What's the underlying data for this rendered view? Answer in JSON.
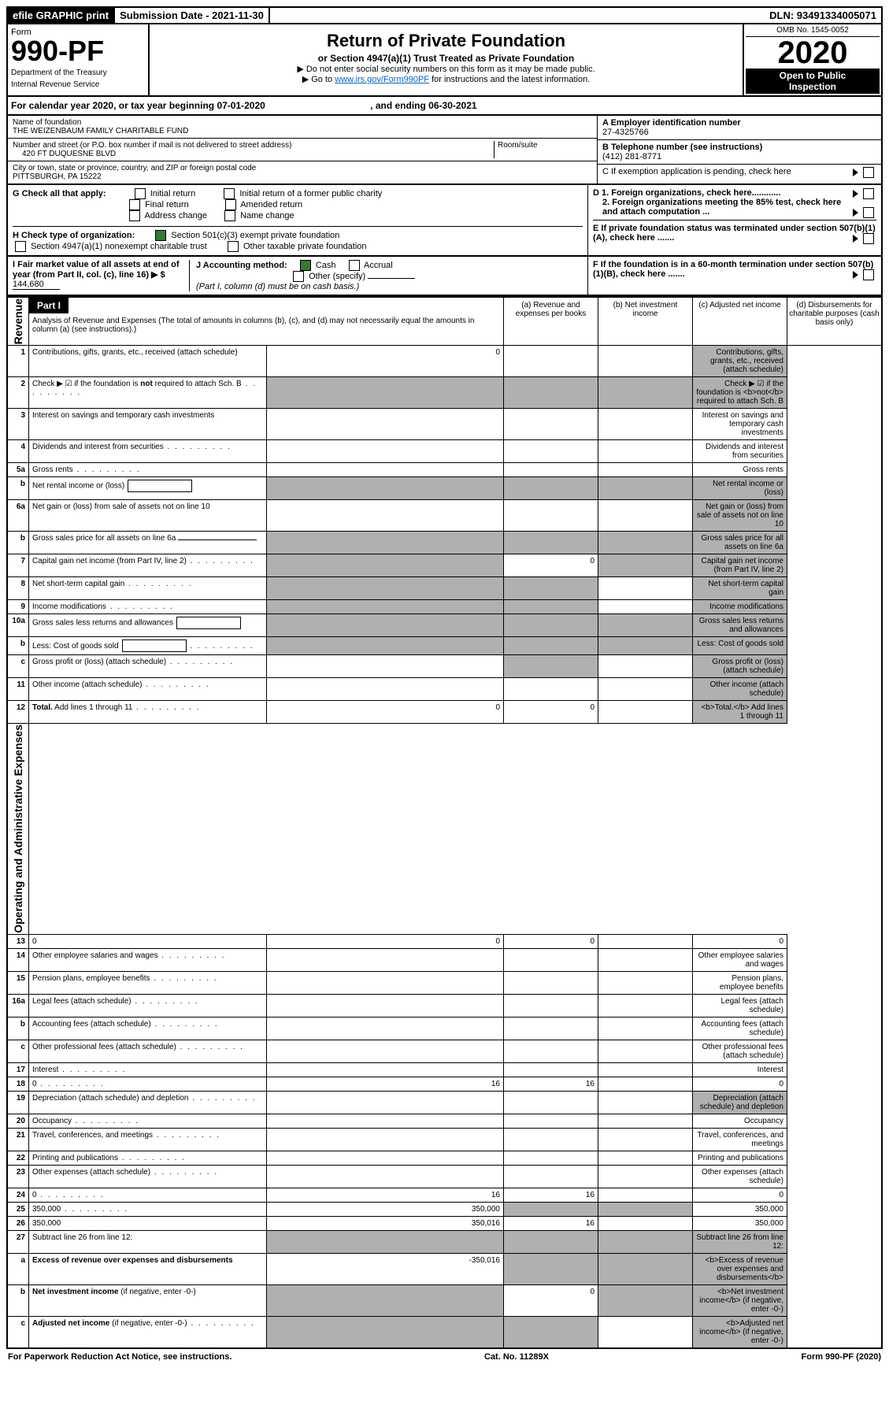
{
  "top": {
    "efile": "efile GRAPHIC print",
    "sub_date_label": "Submission Date - 2021-11-30",
    "dln": "DLN: 93491334005071"
  },
  "header": {
    "form_word": "Form",
    "form_num": "990-PF",
    "dept": "Department of the Treasury",
    "irs": "Internal Revenue Service",
    "title": "Return of Private Foundation",
    "subtitle": "or Section 4947(a)(1) Trust Treated as Private Foundation",
    "warn1": "▶ Do not enter social security numbers on this form as it may be made public.",
    "warn2": "▶ Go to ",
    "warn2_link": "www.irs.gov/Form990PF",
    "warn2_tail": " for instructions and the latest information.",
    "omb": "OMB No. 1545-0052",
    "year": "2020",
    "inspect1": "Open to Public",
    "inspect2": "Inspection"
  },
  "cal": {
    "text_a": "For calendar year 2020, or tax year beginning 07-01-2020",
    "text_b": ", and ending 06-30-2021"
  },
  "id": {
    "name_label": "Name of foundation",
    "name": "THE WEIZENBAUM FAMILY CHARITABLE FUND",
    "addr_label": "Number and street (or P.O. box number if mail is not delivered to street address)",
    "addr": "420 FT DUQUESNE BLVD",
    "room_label": "Room/suite",
    "city_label": "City or town, state or province, country, and ZIP or foreign postal code",
    "city": "PITTSBURGH, PA  15222",
    "a_label": "A Employer identification number",
    "a_val": "27-4325766",
    "b_label": "B Telephone number (see instructions)",
    "b_val": "(412) 281-8771",
    "c_label": "C If exemption application is pending, check here"
  },
  "checks": {
    "g_label": "G Check all that apply:",
    "g_opts": [
      "Initial return",
      "Initial return of a former public charity",
      "Final return",
      "Amended return",
      "Address change",
      "Name change"
    ],
    "h_label": "H Check type of organization:",
    "h1": "Section 501(c)(3) exempt private foundation",
    "h2": "Section 4947(a)(1) nonexempt charitable trust",
    "h3": "Other taxable private foundation",
    "i_label": "I Fair market value of all assets at end of year (from Part II, col. (c), line 16) ▶ $",
    "i_val": "144,680",
    "j_label": "J Accounting method:",
    "j_cash": "Cash",
    "j_accrual": "Accrual",
    "j_other": "Other (specify)",
    "j_note": "(Part I, column (d) must be on cash basis.)",
    "d1": "D 1. Foreign organizations, check here............",
    "d2": "2. Foreign organizations meeting the 85% test, check here and attach computation ...",
    "e": "E  If private foundation status was terminated under section 507(b)(1)(A), check here .......",
    "f": "F  If the foundation is in a 60-month termination under section 507(b)(1)(B), check here .......",
    "part1": "Part I",
    "analysis": "Analysis of Revenue and Expenses",
    "analysis_sub": "(The total of amounts in columns (b), (c), and (d) may not necessarily equal the amounts in column (a) (see instructions).)"
  },
  "cols": {
    "a": "(a) Revenue and expenses per books",
    "b": "(b) Net investment income",
    "c": "(c) Adjusted net income",
    "d": "(d) Disbursements for charitable purposes (cash basis only)"
  },
  "rows": [
    {
      "n": "1",
      "d": "Contributions, gifts, grants, etc., received (attach schedule)",
      "a": "0",
      "shade_d": true
    },
    {
      "n": "2",
      "d": "Check ▶ ☑ if the foundation is <b>not</b> required to attach Sch. B",
      "dots": true,
      "shade_a": true,
      "shade_b": true,
      "shade_c": true,
      "shade_d": true
    },
    {
      "n": "3",
      "d": "Interest on savings and temporary cash investments"
    },
    {
      "n": "4",
      "d": "Dividends and interest from securities",
      "dots": true
    },
    {
      "n": "5a",
      "d": "Gross rents",
      "dots": true
    },
    {
      "n": "b",
      "d": "Net rental income or (loss)",
      "inline_box": true,
      "shade_a": true,
      "shade_b": true,
      "shade_c": true,
      "shade_d": true
    },
    {
      "n": "6a",
      "d": "Net gain or (loss) from sale of assets not on line 10",
      "shade_d": true
    },
    {
      "n": "b",
      "d": "Gross sales price for all assets on line 6a",
      "inline_underline": true,
      "shade_a": true,
      "shade_b": true,
      "shade_c": true,
      "shade_d": true
    },
    {
      "n": "7",
      "d": "Capital gain net income (from Part IV, line 2)",
      "dots": true,
      "shade_a": true,
      "b": "0",
      "shade_c": true,
      "shade_d": true
    },
    {
      "n": "8",
      "d": "Net short-term capital gain",
      "dots": true,
      "shade_a": true,
      "shade_b": true,
      "shade_d": true
    },
    {
      "n": "9",
      "d": "Income modifications",
      "dots": true,
      "shade_a": true,
      "shade_b": true,
      "shade_d": true
    },
    {
      "n": "10a",
      "d": "Gross sales less returns and allowances",
      "inline_box": true,
      "shade_a": true,
      "shade_b": true,
      "shade_c": true,
      "shade_d": true
    },
    {
      "n": "b",
      "d": "Less: Cost of goods sold",
      "dots": true,
      "inline_box": true,
      "shade_a": true,
      "shade_b": true,
      "shade_c": true,
      "shade_d": true
    },
    {
      "n": "c",
      "d": "Gross profit or (loss) (attach schedule)",
      "dots": true,
      "shade_b": true,
      "shade_d": true
    },
    {
      "n": "11",
      "d": "Other income (attach schedule)",
      "dots": true,
      "shade_d": true
    },
    {
      "n": "12",
      "d": "<b>Total.</b> Add lines 1 through 11",
      "dots": true,
      "a": "0",
      "b": "0",
      "shade_d": true
    }
  ],
  "exp_rows": [
    {
      "n": "13",
      "d": "0",
      "a": "0",
      "b": "0"
    },
    {
      "n": "14",
      "d": "Other employee salaries and wages",
      "dots": true
    },
    {
      "n": "15",
      "d": "Pension plans, employee benefits",
      "dots": true
    },
    {
      "n": "16a",
      "d": "Legal fees (attach schedule)",
      "dots": true
    },
    {
      "n": "b",
      "d": "Accounting fees (attach schedule)",
      "dots": true
    },
    {
      "n": "c",
      "d": "Other professional fees (attach schedule)",
      "dots": true
    },
    {
      "n": "17",
      "d": "Interest",
      "dots": true
    },
    {
      "n": "18",
      "d": "0",
      "dots": true,
      "a": "16",
      "b": "16"
    },
    {
      "n": "19",
      "d": "Depreciation (attach schedule) and depletion",
      "dots": true,
      "shade_d": true
    },
    {
      "n": "20",
      "d": "Occupancy",
      "dots": true
    },
    {
      "n": "21",
      "d": "Travel, conferences, and meetings",
      "dots": true
    },
    {
      "n": "22",
      "d": "Printing and publications",
      "dots": true
    },
    {
      "n": "23",
      "d": "Other expenses (attach schedule)",
      "dots": true
    },
    {
      "n": "24",
      "d": "0",
      "dots": true,
      "a": "16",
      "b": "16"
    },
    {
      "n": "25",
      "d": "350,000",
      "dots": true,
      "a": "350,000",
      "shade_b": true,
      "shade_c": true
    },
    {
      "n": "26",
      "d": "350,000",
      "a": "350,016",
      "b": "16"
    }
  ],
  "sub_rows": [
    {
      "n": "27",
      "d": "Subtract line 26 from line 12:",
      "shade_a": true,
      "shade_b": true,
      "shade_c": true,
      "shade_d": true
    },
    {
      "n": "a",
      "d": "<b>Excess of revenue over expenses and disbursements</b>",
      "a": "-350,016",
      "shade_b": true,
      "shade_c": true,
      "shade_d": true
    },
    {
      "n": "b",
      "d": "<b>Net investment income</b> (if negative, enter -0-)",
      "shade_a": true,
      "b": "0",
      "shade_c": true,
      "shade_d": true
    },
    {
      "n": "c",
      "d": "<b>Adjusted net income</b> (if negative, enter -0-)",
      "dots": true,
      "shade_a": true,
      "shade_b": true,
      "shade_d": true
    }
  ],
  "side1": "Revenue",
  "side2": "Operating and Administrative Expenses",
  "footer": {
    "left": "For Paperwork Reduction Act Notice, see instructions.",
    "mid": "Cat. No. 11289X",
    "right": "Form 990-PF (2020)"
  }
}
